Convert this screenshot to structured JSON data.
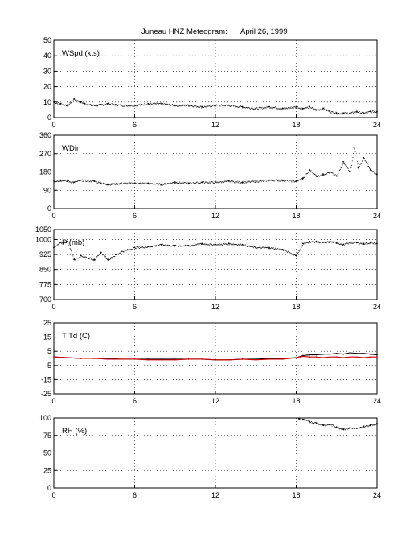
{
  "figure": {
    "title": "Juneau HNZ Meteogram:",
    "date": "April 26, 1999"
  },
  "chart_data": [
    {
      "type": "scatter",
      "label": "WSpd (kts)",
      "xlim": [
        0,
        24
      ],
      "xticks": [
        0,
        6,
        12,
        18,
        24
      ],
      "ylim": [
        0,
        50
      ],
      "yticks": [
        0,
        10,
        20,
        30,
        40,
        50
      ],
      "grid": true,
      "series": [
        {
          "color": "#000000",
          "x": [
            0,
            0.5,
            1.0,
            1.5,
            2.0,
            2.3,
            2.8,
            3.2,
            4,
            5,
            6,
            7,
            8,
            9,
            10,
            11,
            12,
            13,
            14,
            15,
            16,
            17,
            18,
            18.5,
            19,
            19.5,
            20,
            20.5,
            21,
            21.5,
            22,
            22.5,
            23,
            23.5,
            24
          ],
          "y": [
            10,
            9,
            8,
            12,
            10,
            9,
            8,
            8,
            9,
            8,
            8,
            9,
            9,
            8,
            8,
            7,
            8,
            8,
            7,
            6,
            7,
            6,
            7,
            6,
            7,
            5,
            6,
            4,
            3,
            3,
            3,
            4,
            3,
            4,
            4
          ]
        }
      ]
    },
    {
      "type": "scatter",
      "label": "WDir",
      "xlim": [
        0,
        24
      ],
      "xticks": [
        0,
        6,
        12,
        18,
        24
      ],
      "ylim": [
        0,
        360
      ],
      "yticks": [
        0,
        90,
        180,
        270,
        360
      ],
      "grid": true,
      "series": [
        {
          "color": "#000000",
          "x": [
            0,
            0.5,
            1.0,
            1.5,
            2.0,
            3.0,
            3.5,
            4,
            5,
            6,
            7,
            8,
            9,
            10,
            11,
            12,
            13,
            14,
            15,
            16,
            17,
            18,
            18.5,
            19,
            19.5,
            20,
            20.5,
            21,
            21.5,
            22,
            22.3,
            22.6,
            23,
            23.5,
            24
          ],
          "y": [
            135,
            140,
            135,
            130,
            140,
            135,
            125,
            120,
            125,
            125,
            125,
            120,
            130,
            125,
            130,
            130,
            135,
            130,
            135,
            140,
            140,
            135,
            150,
            190,
            160,
            170,
            180,
            160,
            230,
            180,
            300,
            200,
            250,
            190,
            170
          ]
        }
      ]
    },
    {
      "type": "scatter",
      "label": "P (mb)",
      "xlim": [
        0,
        24
      ],
      "xticks": [
        0,
        6,
        12,
        18,
        24
      ],
      "ylim": [
        700,
        1050
      ],
      "yticks": [
        700,
        775,
        850,
        925,
        1000,
        1050
      ],
      "grid": true,
      "series": [
        {
          "color": "#000000",
          "x": [
            0,
            0.5,
            1.0,
            1.5,
            2.0,
            3.0,
            3.5,
            4,
            5,
            6,
            7,
            8,
            9,
            10,
            11,
            12,
            13,
            14,
            15,
            16,
            17,
            18,
            18.5,
            19,
            19.5,
            20,
            20.5,
            21,
            21.5,
            22,
            22.5,
            23,
            23.5,
            24
          ],
          "y": [
            960,
            985,
            990,
            900,
            920,
            900,
            935,
            900,
            940,
            960,
            965,
            975,
            970,
            970,
            980,
            975,
            980,
            975,
            960,
            960,
            950,
            920,
            980,
            990,
            990,
            985,
            990,
            985,
            975,
            985,
            985,
            980,
            985,
            980
          ]
        }
      ]
    },
    {
      "type": "line",
      "label": "T Td (C)",
      "xlim": [
        0,
        24
      ],
      "xticks": [
        0,
        6,
        12,
        18,
        24
      ],
      "ylim": [
        -25,
        25
      ],
      "yticks": [
        -25,
        -15,
        -5,
        5,
        15,
        25
      ],
      "grid": true,
      "series": [
        {
          "color": "#000000",
          "x": [
            0,
            1,
            2,
            3,
            4,
            5,
            6,
            7,
            8,
            9,
            10,
            11,
            12,
            13,
            14,
            15,
            16,
            17,
            18,
            18.5,
            19,
            19.5,
            20,
            20.5,
            21,
            21.5,
            22,
            22.5,
            23,
            23.5,
            24
          ],
          "y": [
            1,
            0.5,
            0,
            0,
            0,
            -0.5,
            -0.5,
            -0.5,
            -0.5,
            -0.5,
            -0.5,
            -0.5,
            -1,
            -1,
            -0.5,
            -0.5,
            0,
            0,
            0.5,
            2,
            2.5,
            2.5,
            3,
            3,
            3.5,
            3,
            4,
            3.5,
            3.5,
            3,
            2.5
          ]
        },
        {
          "color": "#cc0000",
          "x": [
            0,
            1,
            2,
            3,
            4,
            5,
            6,
            7,
            8,
            9,
            10,
            11,
            12,
            13,
            14,
            15,
            16,
            17,
            18,
            18.5,
            19,
            19.5,
            20,
            20.5,
            21,
            21.5,
            22,
            22.5,
            23,
            23.5,
            24
          ],
          "y": [
            1,
            0.5,
            0,
            0,
            -0.5,
            -0.5,
            -0.5,
            -1,
            -1,
            -1,
            -0.5,
            -0.5,
            -1,
            -1,
            -0.5,
            -1,
            -0.5,
            -0.5,
            0.5,
            1.5,
            1,
            1,
            0.5,
            1,
            1,
            0.5,
            1,
            1,
            0.5,
            1,
            1
          ]
        }
      ]
    },
    {
      "type": "scatter",
      "label": "RH (%)",
      "xlim": [
        0,
        24
      ],
      "xticks": [
        0,
        6,
        12,
        18,
        24
      ],
      "ylim": [
        0,
        100
      ],
      "yticks": [
        0,
        25,
        50,
        75,
        100
      ],
      "grid": true,
      "series": [
        {
          "color": "#000000",
          "x": [
            18.2,
            18.5,
            19,
            19.5,
            20,
            20.5,
            21,
            21.5,
            22,
            22.5,
            23,
            23.5,
            24
          ],
          "y": [
            99,
            98,
            95,
            93,
            90,
            91,
            87,
            84,
            86,
            85,
            88,
            90,
            92
          ]
        }
      ]
    }
  ]
}
